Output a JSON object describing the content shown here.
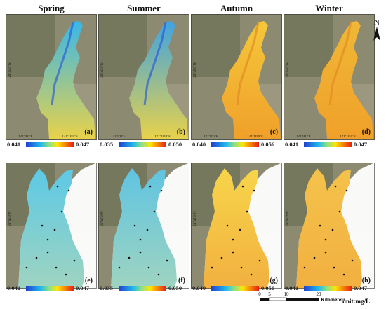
{
  "seasons": [
    "Spring",
    "Summer",
    "Autumn",
    "Winter"
  ],
  "panel_labels": [
    "(a)",
    "(b)",
    "(c)",
    "(d)",
    "(e)",
    "(f)",
    "(g)",
    "(h)"
  ],
  "lat_label": "29°45′0″N",
  "lon_labels": [
    "121°0′0″E",
    "121°10′0″E"
  ],
  "colorbars": [
    {
      "min": "0.041",
      "max": "0.047"
    },
    {
      "min": "0.035",
      "max": "0.050"
    },
    {
      "min": "0.040",
      "max": "0.056"
    },
    {
      "min": "0.041",
      "max": "0.047"
    },
    {
      "min": "0.041",
      "max": "0.047"
    },
    {
      "min": "0.035",
      "max": "0.050"
    },
    {
      "min": "0.040",
      "max": "0.056"
    },
    {
      "min": "0.041",
      "max": "0.047"
    }
  ],
  "north_label": "N",
  "scale": {
    "ticks": [
      "0",
      "5",
      "10",
      "20"
    ],
    "unit": "Kilometers"
  },
  "unit_label": "unit:mg/L",
  "colors": {
    "low": "#1f3fd1",
    "mid": "#ffe600",
    "high": "#e81d12"
  }
}
